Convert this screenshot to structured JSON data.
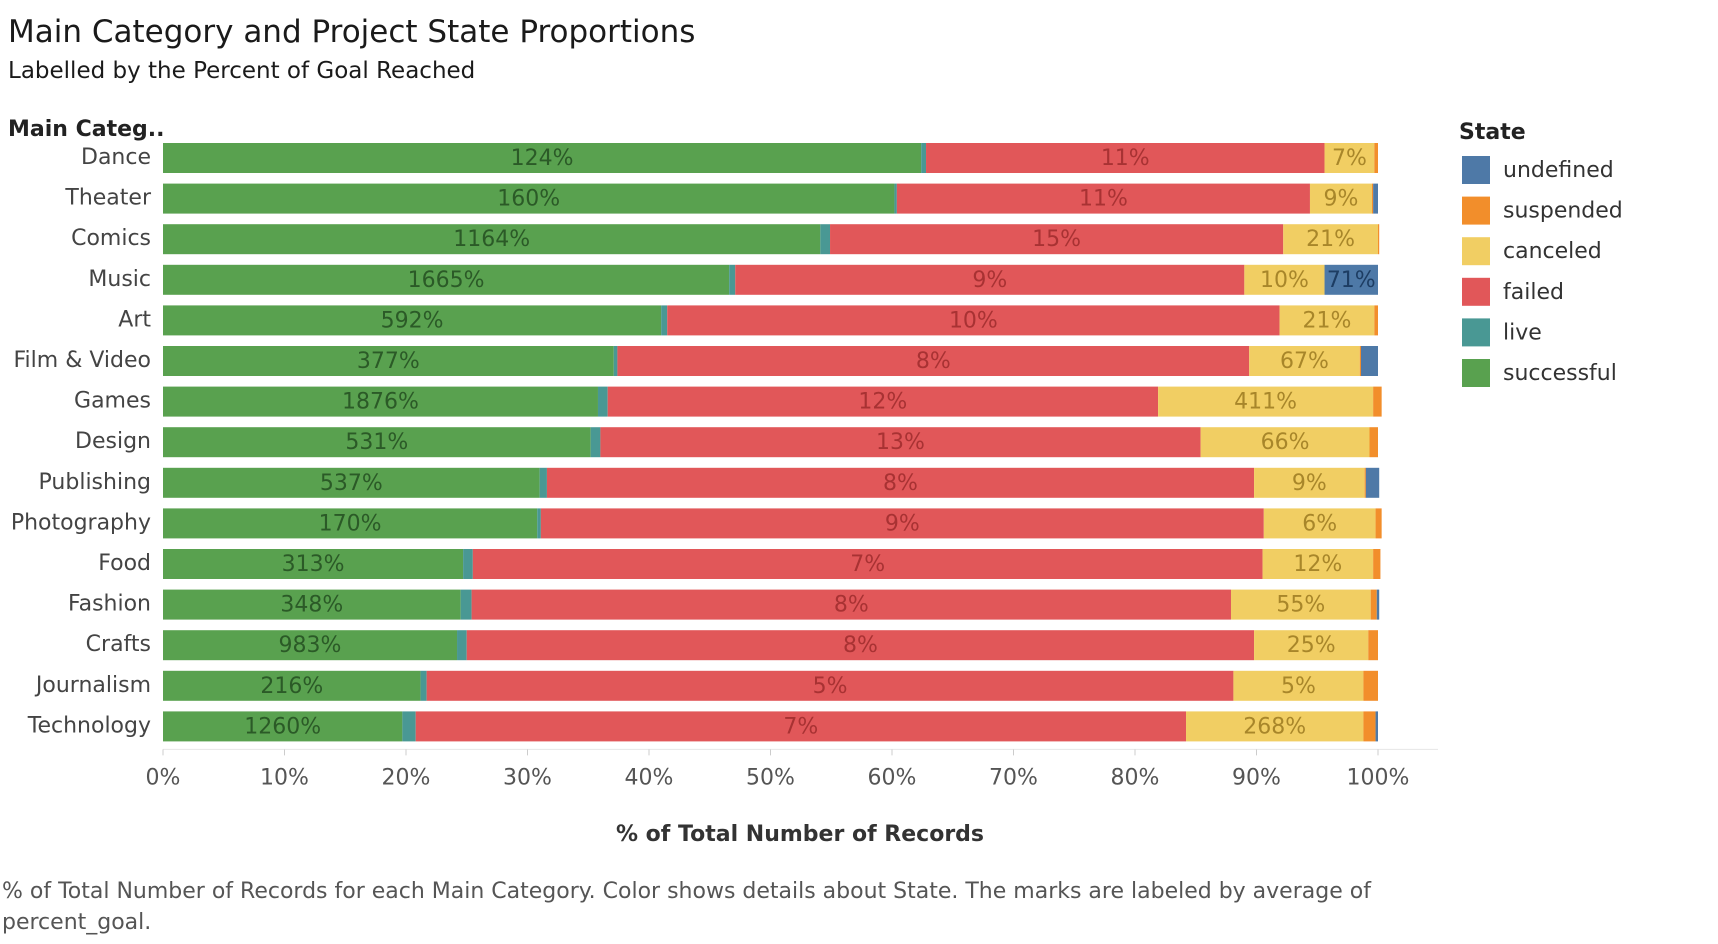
{
  "chart_data": {
    "type": "bar",
    "orientation": "horizontal",
    "stacked": true,
    "title": "Main Category and Project State Proportions",
    "subtitle": "Labelled by the Percent of Goal Reached",
    "row_header": "Main Categ..",
    "xlabel": "% of Total Number of Records",
    "xlim": [
      0,
      100
    ],
    "x_ticks": [
      "0%",
      "10%",
      "20%",
      "30%",
      "40%",
      "50%",
      "60%",
      "70%",
      "80%",
      "90%",
      "100%"
    ],
    "caption": "% of Total Number of Records for each Main Category.  Color shows details about State.  The marks are labeled by average of percent_goal.",
    "legend": {
      "title": "State",
      "position": "right",
      "items": [
        {
          "name": "undefined",
          "color": "#4e79a7"
        },
        {
          "name": "suspended",
          "color": "#f28e2b"
        },
        {
          "name": "canceled",
          "color": "#f1ce63"
        },
        {
          "name": "failed",
          "color": "#e15759"
        },
        {
          "name": "live",
          "color": "#499894"
        },
        {
          "name": "successful",
          "color": "#59a14f"
        }
      ]
    },
    "label_colors": {
      "successful": "#2b5a27",
      "failed": "#a83233",
      "canceled": "#a8862a",
      "undefined": "#1d3d63"
    },
    "categories": [
      "Dance",
      "Theater",
      "Comics",
      "Music",
      "Art",
      "Film & Video",
      "Games",
      "Design",
      "Publishing",
      "Photography",
      "Food",
      "Fashion",
      "Crafts",
      "Journalism",
      "Technology"
    ],
    "series": [
      {
        "name": "successful",
        "values": [
          62.4,
          60.2,
          54.1,
          46.6,
          41.0,
          37.1,
          35.8,
          35.2,
          31.0,
          30.8,
          24.7,
          24.5,
          24.2,
          21.2,
          19.7
        ]
      },
      {
        "name": "live",
        "values": [
          0.4,
          0.2,
          0.8,
          0.5,
          0.5,
          0.3,
          0.8,
          0.8,
          0.6,
          0.3,
          0.8,
          0.9,
          0.8,
          0.5,
          1.1
        ]
      },
      {
        "name": "failed",
        "values": [
          32.8,
          34.0,
          37.3,
          41.9,
          50.4,
          52.0,
          45.3,
          49.4,
          58.2,
          59.5,
          65.0,
          62.5,
          64.8,
          66.4,
          63.4
        ]
      },
      {
        "name": "canceled",
        "values": [
          4.1,
          5.1,
          7.8,
          6.6,
          7.8,
          9.1,
          17.7,
          13.9,
          9.1,
          9.2,
          9.1,
          11.5,
          9.4,
          10.7,
          14.6
        ]
      },
      {
        "name": "suspended",
        "values": [
          0.3,
          0.1,
          0.1,
          0.0,
          0.3,
          0.1,
          0.7,
          0.7,
          0.1,
          0.5,
          0.6,
          0.5,
          0.8,
          1.2,
          1.0
        ]
      },
      {
        "name": "undefined",
        "values": [
          0.0,
          0.4,
          0.0,
          4.4,
          0.0,
          1.4,
          0.0,
          0.0,
          1.1,
          0.0,
          0.0,
          0.2,
          0.0,
          0.0,
          0.2
        ]
      }
    ],
    "labels": {
      "successful": [
        "124%",
        "160%",
        "1164%",
        "1665%",
        "592%",
        "377%",
        "1876%",
        "531%",
        "537%",
        "170%",
        "313%",
        "348%",
        "983%",
        "216%",
        "1260%"
      ],
      "failed": [
        "11%",
        "11%",
        "15%",
        "9%",
        "10%",
        "8%",
        "12%",
        "13%",
        "8%",
        "9%",
        "7%",
        "8%",
        "8%",
        "5%",
        "7%"
      ],
      "canceled": [
        "7%",
        "9%",
        "21%",
        "10%",
        "21%",
        "67%",
        "411%",
        "66%",
        "9%",
        "6%",
        "12%",
        "55%",
        "25%",
        "5%",
        "268%"
      ],
      "undefined": [
        "",
        "",
        "",
        "71%",
        "",
        "",
        "",
        "",
        "",
        "",
        "",
        "",
        "",
        "",
        ""
      ]
    }
  }
}
